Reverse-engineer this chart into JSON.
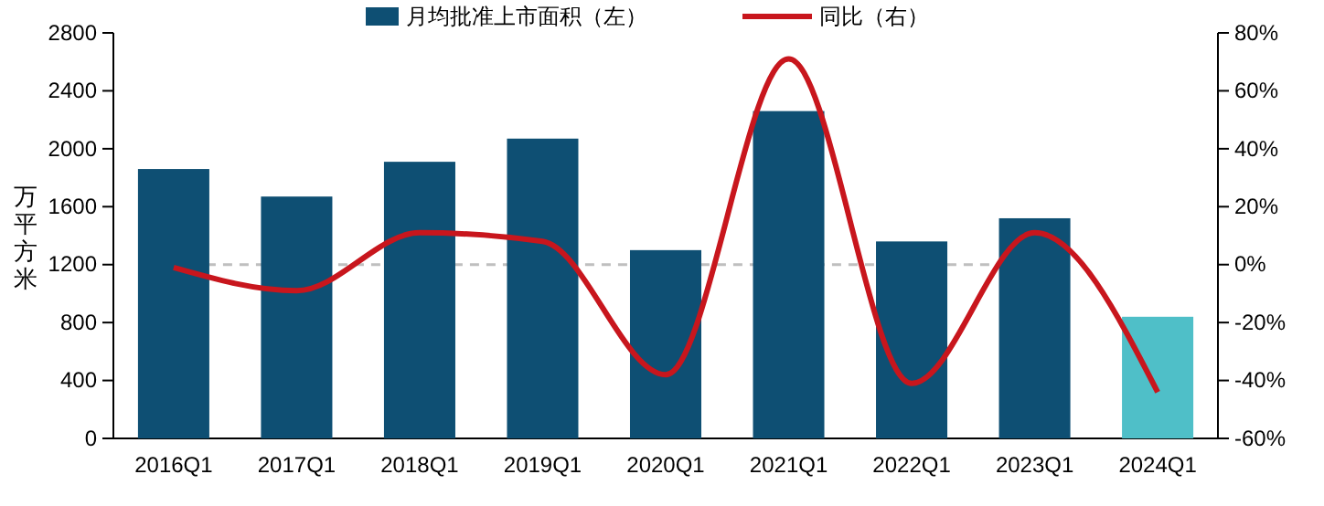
{
  "chart_data": {
    "type": "bar",
    "categories": [
      "2016Q1",
      "2017Q1",
      "2018Q1",
      "2019Q1",
      "2020Q1",
      "2021Q1",
      "2022Q1",
      "2023Q1",
      "2024Q1"
    ],
    "ylabel": "万平方米",
    "ylim": [
      0,
      2800
    ],
    "yticks": [
      0,
      400,
      800,
      1200,
      1600,
      2000,
      2400,
      2800
    ],
    "y2lim": [
      -60,
      80
    ],
    "y2ticks": [
      {
        "value": -60,
        "label": "-60%"
      },
      {
        "value": -40,
        "label": "-40%"
      },
      {
        "value": -20,
        "label": "-20%"
      },
      {
        "value": 0,
        "label": "0%"
      },
      {
        "value": 20,
        "label": "20%"
      },
      {
        "value": 40,
        "label": "40%"
      },
      {
        "value": 60,
        "label": "60%"
      },
      {
        "value": 80,
        "label": "80%"
      }
    ],
    "series": [
      {
        "name": "月均批准上市面积（左）",
        "color": "#0e4f73",
        "colors": [
          "#0e4f73",
          "#0e4f73",
          "#0e4f73",
          "#0e4f73",
          "#0e4f73",
          "#0e4f73",
          "#0e4f73",
          "#0e4f73",
          "#4fbfc8"
        ],
        "values": [
          1860,
          1670,
          1910,
          2070,
          1300,
          2260,
          1360,
          1520,
          840
        ]
      },
      {
        "name": "同比（右）",
        "type": "line",
        "axis": "y2",
        "color": "#c8161d",
        "values": [
          -1,
          -9,
          11,
          8,
          -38,
          71,
          -41,
          11,
          -44
        ]
      }
    ],
    "ref_lines": [
      {
        "axis": "y2",
        "value": 0,
        "color": "#bfbfbf",
        "line_style": "dashed"
      }
    ],
    "legend": "top",
    "grid": false,
    "marker": "none",
    "line_style": "solid"
  }
}
